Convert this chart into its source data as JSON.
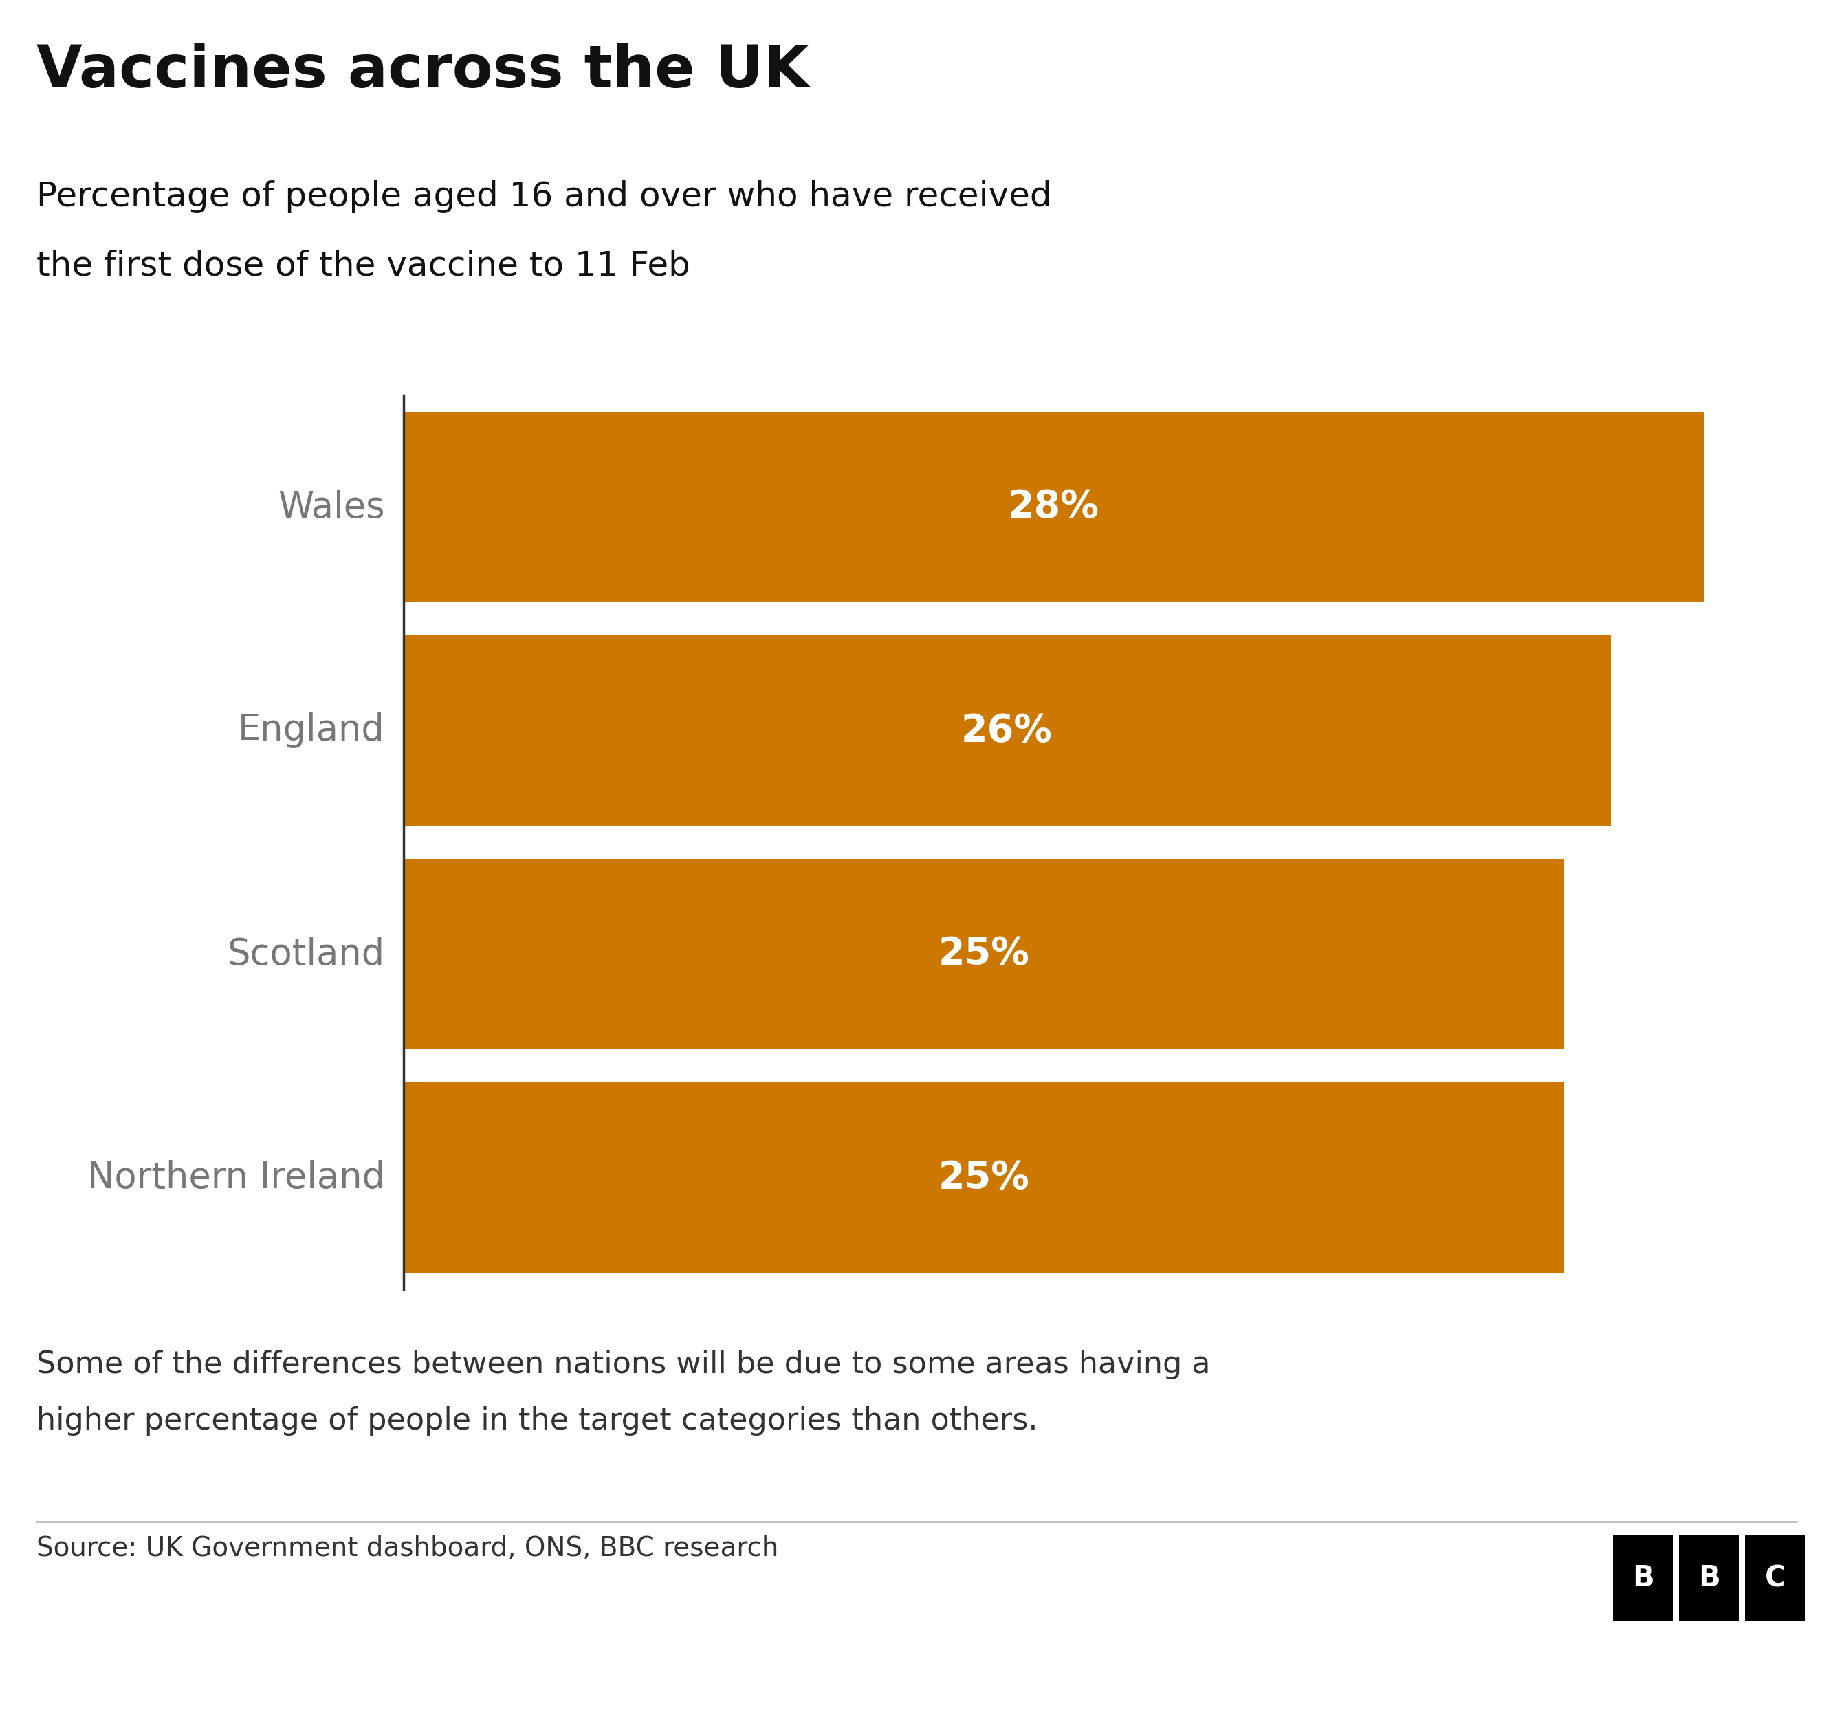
{
  "title": "Vaccines across the UK",
  "subtitle_line1": "Percentage of people aged 16 and over who have received",
  "subtitle_line2": "the first dose of the vaccine to 11 Feb",
  "categories": [
    "Wales",
    "England",
    "Scotland",
    "Northern Ireland"
  ],
  "values": [
    28,
    26,
    25,
    25
  ],
  "bar_color": "#CC7700",
  "label_color": "#777777",
  "value_label_color": "#FFFFFF",
  "background_color": "#FFFFFF",
  "source_text": "Source: UK Government dashboard, ONS, BBC research",
  "footnote_line1": "Some of the differences between nations will be due to some areas having a",
  "footnote_line2": "higher percentage of people in the target categories than others.",
  "xlim": [
    0,
    30
  ],
  "bar_height": 0.85,
  "title_fontsize": 62,
  "subtitle_fontsize": 36,
  "label_fontsize": 38,
  "value_fontsize": 40,
  "source_fontsize": 28,
  "footnote_fontsize": 32
}
